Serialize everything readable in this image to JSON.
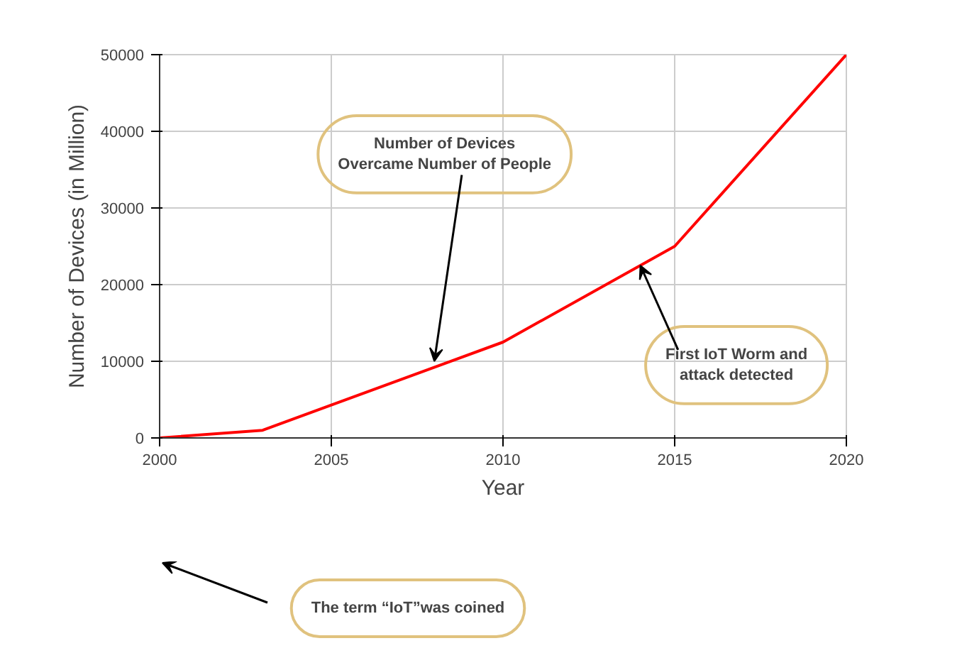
{
  "chart_data": {
    "type": "line",
    "xlabel": "Year",
    "ylabel": "Number of Devices (in Million)",
    "x": [
      2000,
      2003,
      2010,
      2015,
      2020
    ],
    "series": [
      {
        "color": "#ff0000",
        "values": [
          0,
          1000,
          12500,
          25000,
          50000
        ]
      }
    ],
    "xlim": [
      2000,
      2020
    ],
    "xticks": [
      2000,
      2005,
      2010,
      2015,
      2020
    ],
    "ylim": [
      0,
      50000
    ],
    "yticks": [
      0,
      10000,
      20000,
      30000,
      40000,
      50000
    ],
    "grid": true,
    "marker": "none",
    "line_style": "solid",
    "annotations": [
      {
        "text": "Number of Devices\nOvercame Number of People",
        "x": 2008,
        "y": 10000
      },
      {
        "text": "First IoT Worm and\nattack detected",
        "x": 2014,
        "y": 22500
      },
      "The term “IoT”was coined"
    ]
  }
}
